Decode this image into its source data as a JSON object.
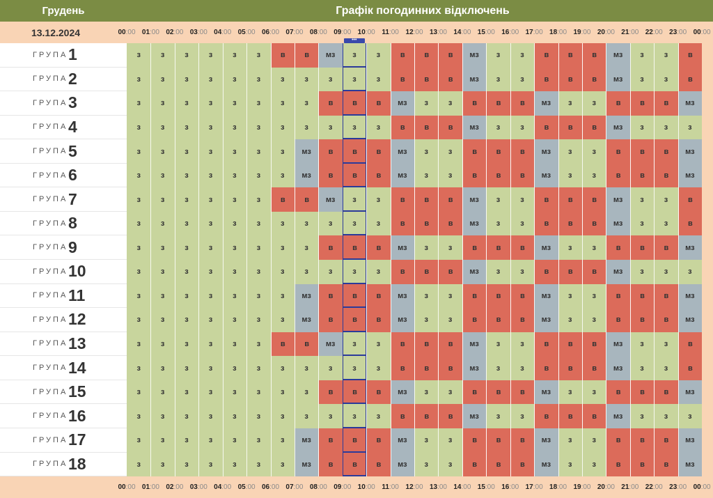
{
  "header": {
    "month": "Грудень",
    "title": "Графік погодинних відключень",
    "date": "13.12.2024"
  },
  "hours": [
    {
      "h": "00",
      "m": ":00"
    },
    {
      "h": "01",
      "m": ":00"
    },
    {
      "h": "02",
      "m": ":00"
    },
    {
      "h": "03",
      "m": ":00"
    },
    {
      "h": "04",
      "m": ":00"
    },
    {
      "h": "05",
      "m": ":00"
    },
    {
      "h": "06",
      "m": ":00"
    },
    {
      "h": "07",
      "m": ":00"
    },
    {
      "h": "08",
      "m": ":00"
    },
    {
      "h": "09",
      "m": ":00"
    },
    {
      "h": "10",
      "m": ":00"
    },
    {
      "h": "11",
      "m": ":00"
    },
    {
      "h": "12",
      "m": ":00"
    },
    {
      "h": "13",
      "m": ":00"
    },
    {
      "h": "14",
      "m": ":00"
    },
    {
      "h": "15",
      "m": ":00"
    },
    {
      "h": "16",
      "m": ":00"
    },
    {
      "h": "17",
      "m": ":00"
    },
    {
      "h": "18",
      "m": ":00"
    },
    {
      "h": "19",
      "m": ":00"
    },
    {
      "h": "20",
      "m": ":00"
    },
    {
      "h": "21",
      "m": ":00"
    },
    {
      "h": "22",
      "m": ":00"
    },
    {
      "h": "23",
      "m": ":00"
    },
    {
      "h": "00",
      "m": ":00"
    }
  ],
  "group_label": "ГРУПА",
  "current_hour_index": 9,
  "status_colors": {
    "з": "#c8d59d",
    "в": "#dc6b5a",
    "мз": "#a8b6be"
  },
  "groups": [
    {
      "num": "1",
      "cells": [
        "з",
        "з",
        "з",
        "з",
        "з",
        "з",
        "в",
        "в",
        "мз",
        "з",
        "з",
        "в",
        "в",
        "в",
        "мз",
        "з",
        "з",
        "в",
        "в",
        "в",
        "мз",
        "з",
        "з",
        "в"
      ]
    },
    {
      "num": "2",
      "cells": [
        "з",
        "з",
        "з",
        "з",
        "з",
        "з",
        "з",
        "з",
        "з",
        "з",
        "з",
        "в",
        "в",
        "в",
        "мз",
        "з",
        "з",
        "в",
        "в",
        "в",
        "мз",
        "з",
        "з",
        "в"
      ]
    },
    {
      "num": "3",
      "cells": [
        "з",
        "з",
        "з",
        "з",
        "з",
        "з",
        "з",
        "з",
        "в",
        "в",
        "в",
        "мз",
        "з",
        "з",
        "в",
        "в",
        "в",
        "мз",
        "з",
        "з",
        "в",
        "в",
        "в",
        "мз"
      ]
    },
    {
      "num": "4",
      "cells": [
        "з",
        "з",
        "з",
        "з",
        "з",
        "з",
        "з",
        "з",
        "з",
        "з",
        "з",
        "в",
        "в",
        "в",
        "мз",
        "з",
        "з",
        "в",
        "в",
        "в",
        "мз",
        "з",
        "з",
        "з"
      ]
    },
    {
      "num": "5",
      "cells": [
        "з",
        "з",
        "з",
        "з",
        "з",
        "з",
        "з",
        "мз",
        "в",
        "в",
        "в",
        "мз",
        "з",
        "з",
        "в",
        "в",
        "в",
        "мз",
        "з",
        "з",
        "в",
        "в",
        "в",
        "мз"
      ]
    },
    {
      "num": "6",
      "cells": [
        "з",
        "з",
        "з",
        "з",
        "з",
        "з",
        "з",
        "мз",
        "в",
        "в",
        "в",
        "мз",
        "з",
        "з",
        "в",
        "в",
        "в",
        "мз",
        "з",
        "з",
        "в",
        "в",
        "в",
        "мз"
      ]
    },
    {
      "num": "7",
      "cells": [
        "з",
        "з",
        "з",
        "з",
        "з",
        "з",
        "в",
        "в",
        "мз",
        "з",
        "з",
        "в",
        "в",
        "в",
        "мз",
        "з",
        "з",
        "в",
        "в",
        "в",
        "мз",
        "з",
        "з",
        "в"
      ]
    },
    {
      "num": "8",
      "cells": [
        "з",
        "з",
        "з",
        "з",
        "з",
        "з",
        "з",
        "з",
        "з",
        "з",
        "з",
        "в",
        "в",
        "в",
        "мз",
        "з",
        "з",
        "в",
        "в",
        "в",
        "мз",
        "з",
        "з",
        "в"
      ]
    },
    {
      "num": "9",
      "cells": [
        "з",
        "з",
        "з",
        "з",
        "з",
        "з",
        "з",
        "з",
        "в",
        "в",
        "в",
        "мз",
        "з",
        "з",
        "в",
        "в",
        "в",
        "мз",
        "з",
        "з",
        "в",
        "в",
        "в",
        "мз"
      ]
    },
    {
      "num": "10",
      "cells": [
        "з",
        "з",
        "з",
        "з",
        "з",
        "з",
        "з",
        "з",
        "з",
        "з",
        "з",
        "в",
        "в",
        "в",
        "мз",
        "з",
        "з",
        "в",
        "в",
        "в",
        "мз",
        "з",
        "з",
        "з"
      ]
    },
    {
      "num": "11",
      "cells": [
        "з",
        "з",
        "з",
        "з",
        "з",
        "з",
        "з",
        "мз",
        "в",
        "в",
        "в",
        "мз",
        "з",
        "з",
        "в",
        "в",
        "в",
        "мз",
        "з",
        "з",
        "в",
        "в",
        "в",
        "мз"
      ]
    },
    {
      "num": "12",
      "cells": [
        "з",
        "з",
        "з",
        "з",
        "з",
        "з",
        "з",
        "мз",
        "в",
        "в",
        "в",
        "мз",
        "з",
        "з",
        "в",
        "в",
        "в",
        "мз",
        "з",
        "з",
        "в",
        "в",
        "в",
        "мз"
      ]
    },
    {
      "num": "13",
      "cells": [
        "з",
        "з",
        "з",
        "з",
        "з",
        "з",
        "в",
        "в",
        "мз",
        "з",
        "з",
        "в",
        "в",
        "в",
        "мз",
        "з",
        "з",
        "в",
        "в",
        "в",
        "мз",
        "з",
        "з",
        "в"
      ]
    },
    {
      "num": "14",
      "cells": [
        "з",
        "з",
        "з",
        "з",
        "з",
        "з",
        "з",
        "з",
        "з",
        "з",
        "з",
        "в",
        "в",
        "в",
        "мз",
        "з",
        "з",
        "в",
        "в",
        "в",
        "мз",
        "з",
        "з",
        "в"
      ]
    },
    {
      "num": "15",
      "cells": [
        "з",
        "з",
        "з",
        "з",
        "з",
        "з",
        "з",
        "з",
        "в",
        "в",
        "в",
        "мз",
        "з",
        "з",
        "в",
        "в",
        "в",
        "мз",
        "з",
        "з",
        "в",
        "в",
        "в",
        "мз"
      ]
    },
    {
      "num": "16",
      "cells": [
        "з",
        "з",
        "з",
        "з",
        "з",
        "з",
        "з",
        "з",
        "з",
        "з",
        "з",
        "в",
        "в",
        "в",
        "мз",
        "з",
        "з",
        "в",
        "в",
        "в",
        "мз",
        "з",
        "з",
        "з"
      ]
    },
    {
      "num": "17",
      "cells": [
        "з",
        "з",
        "з",
        "з",
        "з",
        "з",
        "з",
        "мз",
        "в",
        "в",
        "в",
        "мз",
        "з",
        "з",
        "в",
        "в",
        "в",
        "мз",
        "з",
        "з",
        "в",
        "в",
        "в",
        "мз"
      ]
    },
    {
      "num": "18",
      "cells": [
        "з",
        "з",
        "з",
        "з",
        "з",
        "з",
        "з",
        "мз",
        "в",
        "в",
        "в",
        "мз",
        "з",
        "з",
        "в",
        "в",
        "в",
        "мз",
        "з",
        "з",
        "в",
        "в",
        "в",
        "мз"
      ]
    }
  ]
}
